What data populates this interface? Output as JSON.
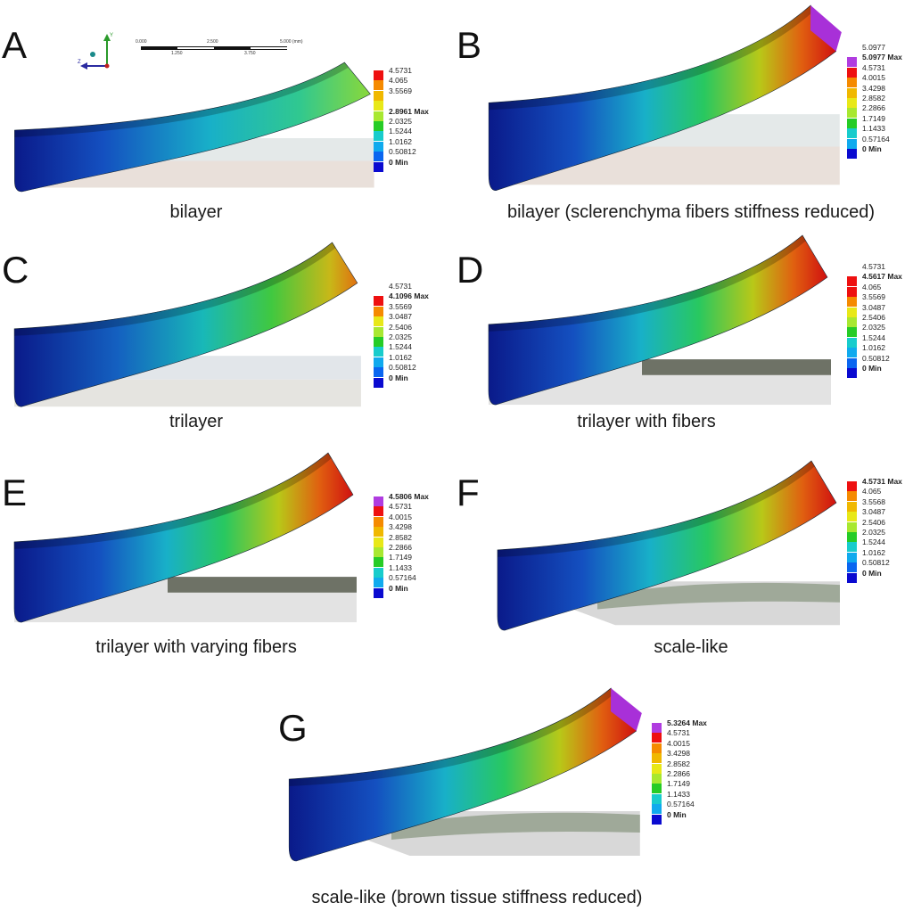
{
  "colors": {
    "magenta": "#b03ce0",
    "red": "#ee1010",
    "orange": "#f58a00",
    "amber": "#f0b800",
    "yellow": "#e8e818",
    "lime": "#a8e830",
    "green": "#26cc26",
    "teal": "#1ecc90",
    "cyan": "#18cccc",
    "sky": "#10aaee",
    "azure": "#0a66f0",
    "blue": "#0a0ad0"
  },
  "scale": {
    "ticks_top": [
      "0.000",
      "2.500",
      "5.000 (mm)"
    ],
    "ticks_bottom": [
      "1.250",
      "3.750"
    ]
  },
  "axes": {
    "y": "Y",
    "z": "Z"
  },
  "panels": [
    {
      "id": "A",
      "letter": "A",
      "caption": "bilayer",
      "legend": [
        {
          "label": "4.5731",
          "bold": false,
          "color": "red"
        },
        {
          "label": "4.065",
          "bold": false,
          "color": "orange"
        },
        {
          "label": "3.5569",
          "bold": false,
          "color": "amber"
        },
        {
          "label": "",
          "bold": false,
          "color": "yellow"
        },
        {
          "label": "2.8961 Max",
          "bold": true,
          "color": "lime"
        },
        {
          "label": "2.0325",
          "bold": false,
          "color": "green"
        },
        {
          "label": "1.5244",
          "bold": false,
          "color": "cyan"
        },
        {
          "label": "1.0162",
          "bold": false,
          "color": "sky"
        },
        {
          "label": "0.50812",
          "bold": false,
          "color": "azure"
        },
        {
          "label": "0 Min",
          "bold": true,
          "color": "blue"
        }
      ]
    },
    {
      "id": "B",
      "letter": "B",
      "caption": "bilayer (sclerenchyma fibers stiffness reduced)",
      "legend": [
        {
          "label": "5.0977",
          "bold": false,
          "color": ""
        },
        {
          "label": "5.0977 Max",
          "bold": true,
          "color": "magenta"
        },
        {
          "label": "4.5731",
          "bold": false,
          "color": "red"
        },
        {
          "label": "4.0015",
          "bold": false,
          "color": "orange"
        },
        {
          "label": "3.4298",
          "bold": false,
          "color": "amber"
        },
        {
          "label": "2.8582",
          "bold": false,
          "color": "yellow"
        },
        {
          "label": "2.2866",
          "bold": false,
          "color": "lime"
        },
        {
          "label": "1.7149",
          "bold": false,
          "color": "green"
        },
        {
          "label": "1.1433",
          "bold": false,
          "color": "cyan"
        },
        {
          "label": "0.57164",
          "bold": false,
          "color": "sky"
        },
        {
          "label": "0 Min",
          "bold": true,
          "color": "blue"
        }
      ]
    },
    {
      "id": "C",
      "letter": "C",
      "caption": "trilayer",
      "legend": [
        {
          "label": "4.5731",
          "bold": false,
          "color": ""
        },
        {
          "label": "4.1096 Max",
          "bold": true,
          "color": "red"
        },
        {
          "label": "3.5569",
          "bold": false,
          "color": "orange"
        },
        {
          "label": "3.0487",
          "bold": false,
          "color": "yellow"
        },
        {
          "label": "2.5406",
          "bold": false,
          "color": "lime"
        },
        {
          "label": "2.0325",
          "bold": false,
          "color": "green"
        },
        {
          "label": "1.5244",
          "bold": false,
          "color": "cyan"
        },
        {
          "label": "1.0162",
          "bold": false,
          "color": "sky"
        },
        {
          "label": "0.50812",
          "bold": false,
          "color": "azure"
        },
        {
          "label": "0 Min",
          "bold": true,
          "color": "blue"
        }
      ]
    },
    {
      "id": "D",
      "letter": "D",
      "caption": "trilayer with fibers",
      "legend": [
        {
          "label": "4.5731",
          "bold": false,
          "color": ""
        },
        {
          "label": "4.5617 Max",
          "bold": true,
          "color": "red"
        },
        {
          "label": "4.065",
          "bold": false,
          "color": "red"
        },
        {
          "label": "3.5569",
          "bold": false,
          "color": "orange"
        },
        {
          "label": "3.0487",
          "bold": false,
          "color": "yellow"
        },
        {
          "label": "2.5406",
          "bold": false,
          "color": "lime"
        },
        {
          "label": "2.0325",
          "bold": false,
          "color": "green"
        },
        {
          "label": "1.5244",
          "bold": false,
          "color": "cyan"
        },
        {
          "label": "1.0162",
          "bold": false,
          "color": "sky"
        },
        {
          "label": "0.50812",
          "bold": false,
          "color": "azure"
        },
        {
          "label": "0 Min",
          "bold": true,
          "color": "blue"
        }
      ]
    },
    {
      "id": "E",
      "letter": "E",
      "caption": "trilayer with varying fibers",
      "legend": [
        {
          "label": "4.5806 Max",
          "bold": true,
          "color": "magenta"
        },
        {
          "label": "4.5731",
          "bold": false,
          "color": "red"
        },
        {
          "label": "4.0015",
          "bold": false,
          "color": "orange"
        },
        {
          "label": "3.4298",
          "bold": false,
          "color": "amber"
        },
        {
          "label": "2.8582",
          "bold": false,
          "color": "yellow"
        },
        {
          "label": "2.2866",
          "bold": false,
          "color": "lime"
        },
        {
          "label": "1.7149",
          "bold": false,
          "color": "green"
        },
        {
          "label": "1.1433",
          "bold": false,
          "color": "cyan"
        },
        {
          "label": "0.57164",
          "bold": false,
          "color": "sky"
        },
        {
          "label": "0 Min",
          "bold": true,
          "color": "blue"
        }
      ]
    },
    {
      "id": "F",
      "letter": "F",
      "caption": "scale-like",
      "legend": [
        {
          "label": "4.5731 Max",
          "bold": true,
          "color": "red"
        },
        {
          "label": "4.065",
          "bold": false,
          "color": "orange"
        },
        {
          "label": "3.5568",
          "bold": false,
          "color": "amber"
        },
        {
          "label": "3.0487",
          "bold": false,
          "color": "yellow"
        },
        {
          "label": "2.5406",
          "bold": false,
          "color": "lime"
        },
        {
          "label": "2.0325",
          "bold": false,
          "color": "green"
        },
        {
          "label": "1.5244",
          "bold": false,
          "color": "cyan"
        },
        {
          "label": "1.0162",
          "bold": false,
          "color": "sky"
        },
        {
          "label": "0.50812",
          "bold": false,
          "color": "azure"
        },
        {
          "label": "0 Min",
          "bold": true,
          "color": "blue"
        }
      ]
    },
    {
      "id": "G",
      "letter": "G",
      "caption": "scale-like (brown tissue stiffness reduced)",
      "legend": [
        {
          "label": "5.3264 Max",
          "bold": true,
          "color": "magenta"
        },
        {
          "label": "4.5731",
          "bold": false,
          "color": "red"
        },
        {
          "label": "4.0015",
          "bold": false,
          "color": "orange"
        },
        {
          "label": "3.4298",
          "bold": false,
          "color": "amber"
        },
        {
          "label": "2.8582",
          "bold": false,
          "color": "yellow"
        },
        {
          "label": "2.2866",
          "bold": false,
          "color": "lime"
        },
        {
          "label": "1.7149",
          "bold": false,
          "color": "green"
        },
        {
          "label": "1.1433",
          "bold": false,
          "color": "cyan"
        },
        {
          "label": "0.57164",
          "bold": false,
          "color": "sky"
        },
        {
          "label": "0 Min",
          "bold": true,
          "color": "blue"
        }
      ]
    }
  ]
}
